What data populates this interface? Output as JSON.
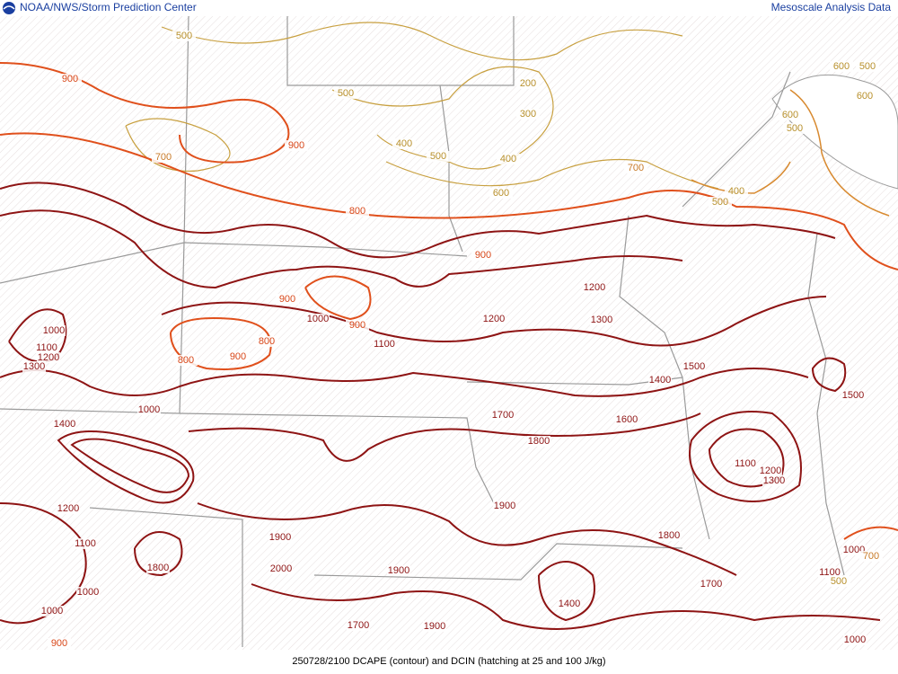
{
  "header": {
    "source": "NOAA/NWS/Storm Prediction Center",
    "product": "Mesoscale Analysis Data"
  },
  "footer": "250728/2100 DCAPE (contour) and DCIN (hatching at 25 and 100 J/kg)",
  "contour_labels": [
    500,
    900,
    500,
    200,
    300,
    700,
    900,
    400,
    500,
    400,
    600,
    700,
    800,
    900,
    600,
    500,
    600,
    600,
    500,
    400,
    500,
    900,
    1000,
    900,
    800,
    900,
    800,
    1100,
    1000,
    1100,
    1200,
    1300,
    1200,
    1200,
    1300,
    1500,
    1400,
    1500,
    1000,
    1400,
    1700,
    1600,
    1800,
    1100,
    1200,
    1300,
    1900,
    1200,
    1100,
    1900,
    1800,
    2000,
    1900,
    1800,
    1000,
    1700,
    1000,
    1100,
    500,
    1400,
    1000,
    1700,
    1900,
    900,
    1000,
    700
  ]
}
